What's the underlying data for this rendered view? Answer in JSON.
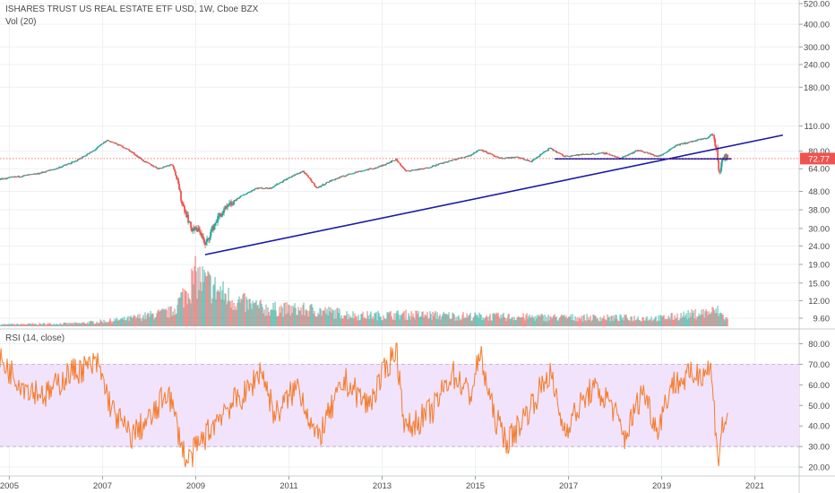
{
  "header": {
    "title": "ISHARES TRUST US REAL ESTATE ETF USD, 1W, Cboe BZX",
    "volume_label": "Vol (20)"
  },
  "rsi_panel": {
    "label": "RSI (14, close)"
  },
  "colors": {
    "up": "#26a69a",
    "down": "#ef5350",
    "trendline": "#1a1aa6",
    "rsi_line": "#f57c2b",
    "rsi_band": "#f1e3fb",
    "last_price_bg": "#ef5350",
    "grid": "#eef0f3"
  },
  "chart_data": [
    {
      "type": "candlestick",
      "title": "ISHARES TRUST US REAL ESTATE ETF USD, 1W, Cboe BZX",
      "scale": "log",
      "y_ticks": [
        9.6,
        12.0,
        15.0,
        19.0,
        24.0,
        30.0,
        38.0,
        48.0,
        64.0,
        80.0,
        110.0,
        180.0,
        240.0,
        300.0,
        400.0,
        520.0
      ],
      "y_tick_labels": [
        "9.60",
        "12.00",
        "15.00",
        "19.00",
        "24.00",
        "30.00",
        "38.00",
        "48.00",
        "64.00",
        "80.00",
        "110.00",
        "180.00",
        "240.00",
        "300.00",
        "400.00",
        "520.00"
      ],
      "x_tick_labels": [
        "2005",
        "2007",
        "2009",
        "2011",
        "2013",
        "2015",
        "2017",
        "2019",
        "2021"
      ],
      "x_ticks": [
        2005.0,
        2007.0,
        2009.0,
        2011.0,
        2013.0,
        2015.0,
        2017.0,
        2019.0,
        2021.0
      ],
      "last_price": 72.77,
      "last_price_label": "72.77",
      "close_path": [
        {
          "t": 2004.8,
          "v": 56
        },
        {
          "t": 2005.2,
          "v": 58
        },
        {
          "t": 2005.6,
          "v": 60
        },
        {
          "t": 2006.0,
          "v": 64
        },
        {
          "t": 2006.4,
          "v": 70
        },
        {
          "t": 2006.8,
          "v": 80
        },
        {
          "t": 2007.1,
          "v": 92
        },
        {
          "t": 2007.5,
          "v": 83
        },
        {
          "t": 2007.9,
          "v": 70
        },
        {
          "t": 2008.2,
          "v": 64
        },
        {
          "t": 2008.5,
          "v": 68
        },
        {
          "t": 2008.7,
          "v": 42
        },
        {
          "t": 2008.9,
          "v": 30
        },
        {
          "t": 2009.1,
          "v": 29
        },
        {
          "t": 2009.2,
          "v": 24
        },
        {
          "t": 2009.5,
          "v": 35
        },
        {
          "t": 2009.9,
          "v": 44
        },
        {
          "t": 2010.3,
          "v": 50
        },
        {
          "t": 2010.6,
          "v": 50
        },
        {
          "t": 2011.0,
          "v": 57
        },
        {
          "t": 2011.3,
          "v": 62
        },
        {
          "t": 2011.6,
          "v": 50
        },
        {
          "t": 2011.9,
          "v": 55
        },
        {
          "t": 2012.4,
          "v": 61
        },
        {
          "t": 2012.9,
          "v": 65
        },
        {
          "t": 2013.3,
          "v": 72
        },
        {
          "t": 2013.5,
          "v": 62
        },
        {
          "t": 2013.9,
          "v": 64
        },
        {
          "t": 2014.4,
          "v": 70
        },
        {
          "t": 2014.9,
          "v": 76
        },
        {
          "t": 2015.1,
          "v": 82
        },
        {
          "t": 2015.5,
          "v": 73
        },
        {
          "t": 2015.9,
          "v": 74
        },
        {
          "t": 2016.2,
          "v": 70
        },
        {
          "t": 2016.6,
          "v": 83
        },
        {
          "t": 2016.9,
          "v": 75
        },
        {
          "t": 2017.4,
          "v": 77
        },
        {
          "t": 2017.8,
          "v": 78
        },
        {
          "t": 2018.1,
          "v": 73
        },
        {
          "t": 2018.5,
          "v": 81
        },
        {
          "t": 2018.9,
          "v": 75
        },
        {
          "t": 2019.0,
          "v": 76
        },
        {
          "t": 2019.3,
          "v": 86
        },
        {
          "t": 2019.7,
          "v": 91
        },
        {
          "t": 2020.0,
          "v": 95
        },
        {
          "t": 2020.08,
          "v": 100
        },
        {
          "t": 2020.18,
          "v": 82
        },
        {
          "t": 2020.23,
          "v": 60
        },
        {
          "t": 2020.28,
          "v": 68
        },
        {
          "t": 2020.34,
          "v": 75
        },
        {
          "t": 2020.4,
          "v": 72.77
        }
      ],
      "trendlines": [
        {
          "name": "rising support",
          "from": {
            "t": 2009.2,
            "v": 21.5
          },
          "to": {
            "t": 2021.6,
            "v": 98
          }
        },
        {
          "name": "horizontal support",
          "from": {
            "t": 2016.7,
            "v": 72.5
          },
          "to": {
            "t": 2020.5,
            "v": 72.5
          }
        }
      ]
    },
    {
      "type": "bar",
      "title": "Vol (20)",
      "series_note": "weekly volume, shown as relative height (0-1) of the panel",
      "profile": [
        {
          "t": 2004.8,
          "v": 0.03
        },
        {
          "t": 2006.5,
          "v": 0.05
        },
        {
          "t": 2007.5,
          "v": 0.12
        },
        {
          "t": 2008.5,
          "v": 0.25
        },
        {
          "t": 2009.0,
          "v": 0.85
        },
        {
          "t": 2009.3,
          "v": 0.7
        },
        {
          "t": 2009.8,
          "v": 0.45
        },
        {
          "t": 2010.5,
          "v": 0.3
        },
        {
          "t": 2011.5,
          "v": 0.28
        },
        {
          "t": 2012.5,
          "v": 0.18
        },
        {
          "t": 2013.5,
          "v": 0.2
        },
        {
          "t": 2015.0,
          "v": 0.17
        },
        {
          "t": 2017.0,
          "v": 0.15
        },
        {
          "t": 2019.0,
          "v": 0.14
        },
        {
          "t": 2020.2,
          "v": 0.26
        },
        {
          "t": 2020.4,
          "v": 0.12
        }
      ]
    },
    {
      "type": "line",
      "title": "RSI (14, close)",
      "y_ticks": [
        20,
        30,
        40,
        50,
        60,
        70,
        80
      ],
      "y_tick_labels": [
        "20.00",
        "30.00",
        "40.00",
        "50.00",
        "60.00",
        "70.00",
        "80.00"
      ],
      "ylim": [
        17,
        85
      ],
      "upper_band": 70,
      "lower_band": 30,
      "anchors": [
        {
          "t": 2004.8,
          "v": 72
        },
        {
          "t": 2005.3,
          "v": 60
        },
        {
          "t": 2005.8,
          "v": 55
        },
        {
          "t": 2006.3,
          "v": 66
        },
        {
          "t": 2006.9,
          "v": 70
        },
        {
          "t": 2007.2,
          "v": 48
        },
        {
          "t": 2007.6,
          "v": 35
        },
        {
          "t": 2008.1,
          "v": 45
        },
        {
          "t": 2008.4,
          "v": 58
        },
        {
          "t": 2008.8,
          "v": 22
        },
        {
          "t": 2009.2,
          "v": 35
        },
        {
          "t": 2009.6,
          "v": 48
        },
        {
          "t": 2010.1,
          "v": 56
        },
        {
          "t": 2010.4,
          "v": 68
        },
        {
          "t": 2010.7,
          "v": 45
        },
        {
          "t": 2011.2,
          "v": 60
        },
        {
          "t": 2011.6,
          "v": 33
        },
        {
          "t": 2012.2,
          "v": 62
        },
        {
          "t": 2012.7,
          "v": 50
        },
        {
          "t": 2013.3,
          "v": 78
        },
        {
          "t": 2013.5,
          "v": 38
        },
        {
          "t": 2014.1,
          "v": 48
        },
        {
          "t": 2014.5,
          "v": 66
        },
        {
          "t": 2014.9,
          "v": 55
        },
        {
          "t": 2015.1,
          "v": 75
        },
        {
          "t": 2015.4,
          "v": 45
        },
        {
          "t": 2015.7,
          "v": 32
        },
        {
          "t": 2016.2,
          "v": 50
        },
        {
          "t": 2016.6,
          "v": 66
        },
        {
          "t": 2016.9,
          "v": 38
        },
        {
          "t": 2017.5,
          "v": 58
        },
        {
          "t": 2017.9,
          "v": 52
        },
        {
          "t": 2018.2,
          "v": 34
        },
        {
          "t": 2018.6,
          "v": 58
        },
        {
          "t": 2018.9,
          "v": 38
        },
        {
          "t": 2019.2,
          "v": 60
        },
        {
          "t": 2019.6,
          "v": 64
        },
        {
          "t": 2020.05,
          "v": 68
        },
        {
          "t": 2020.22,
          "v": 23
        },
        {
          "t": 2020.3,
          "v": 40
        },
        {
          "t": 2020.4,
          "v": 42
        }
      ]
    }
  ]
}
